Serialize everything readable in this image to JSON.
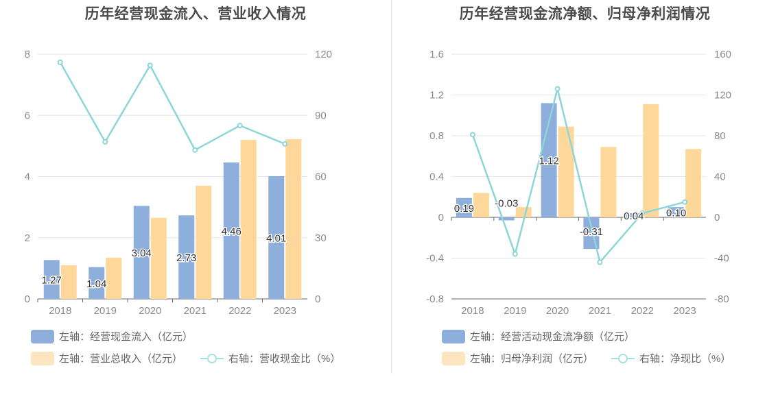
{
  "chart_data": [
    {
      "type": "bar",
      "title": "历年经营现金流入、营业收入情况",
      "categories": [
        "2018",
        "2019",
        "2020",
        "2021",
        "2022",
        "2023"
      ],
      "y_left": {
        "range": [
          0,
          8
        ],
        "ticks": [
          "0",
          "2",
          "4",
          "6",
          "8"
        ]
      },
      "y_right": {
        "range": [
          0,
          120
        ],
        "ticks": [
          "0",
          "30",
          "60",
          "90",
          "120"
        ]
      },
      "series": [
        {
          "name": "左轴：经营现金流入（亿元）",
          "kind": "bar",
          "axis": "left",
          "color": "#8eaedb",
          "values": [
            1.27,
            1.04,
            3.04,
            2.73,
            4.46,
            4.01
          ],
          "labels": [
            "1.27",
            "1.04",
            "3.04",
            "2.73",
            "4.46",
            "4.01"
          ]
        },
        {
          "name": "左轴：营业总收入（亿元）",
          "kind": "bar",
          "axis": "left",
          "color": "#fdd89a",
          "values": [
            1.1,
            1.35,
            2.65,
            3.7,
            5.2,
            5.22
          ]
        },
        {
          "name": "右轴：营收现金比（%）",
          "kind": "line",
          "axis": "right",
          "color": "#8dd6d8",
          "values": [
            116,
            77,
            114.5,
            73,
            85,
            76
          ]
        }
      ],
      "grid": true,
      "legend_position": "bottom"
    },
    {
      "type": "bar",
      "title": "历年经营现金流净额、归母净利润情况",
      "categories": [
        "2018",
        "2019",
        "2020",
        "2021",
        "2022",
        "2023"
      ],
      "y_left": {
        "range": [
          -0.8,
          1.6
        ],
        "ticks": [
          "-0.8",
          "-0.4",
          "0",
          "0.4",
          "0.8",
          "1.2",
          "1.6"
        ]
      },
      "y_right": {
        "range": [
          -80,
          160
        ],
        "ticks": [
          "-80",
          "-40",
          "0",
          "40",
          "80",
          "120",
          "160"
        ]
      },
      "series": [
        {
          "name": "左轴：经营活动现金流净额（亿元）",
          "kind": "bar",
          "axis": "left",
          "color": "#8eaedb",
          "values": [
            0.19,
            -0.03,
            1.12,
            -0.31,
            0.04,
            0.1
          ],
          "labels": [
            "0.19",
            "-0.03",
            "1.12",
            "-0.31",
            "0.04",
            "0.10"
          ]
        },
        {
          "name": "左轴：归母净利润（亿元）",
          "kind": "bar",
          "axis": "left",
          "color": "#fdd89a",
          "values": [
            0.24,
            0.1,
            0.89,
            0.69,
            1.11,
            0.67
          ]
        },
        {
          "name": "右轴：净现比（%）",
          "kind": "line",
          "axis": "right",
          "color": "#8dd6d8",
          "values": [
            81,
            -36,
            126,
            -44,
            4,
            15
          ]
        }
      ],
      "grid": true,
      "legend_position": "bottom"
    }
  ]
}
